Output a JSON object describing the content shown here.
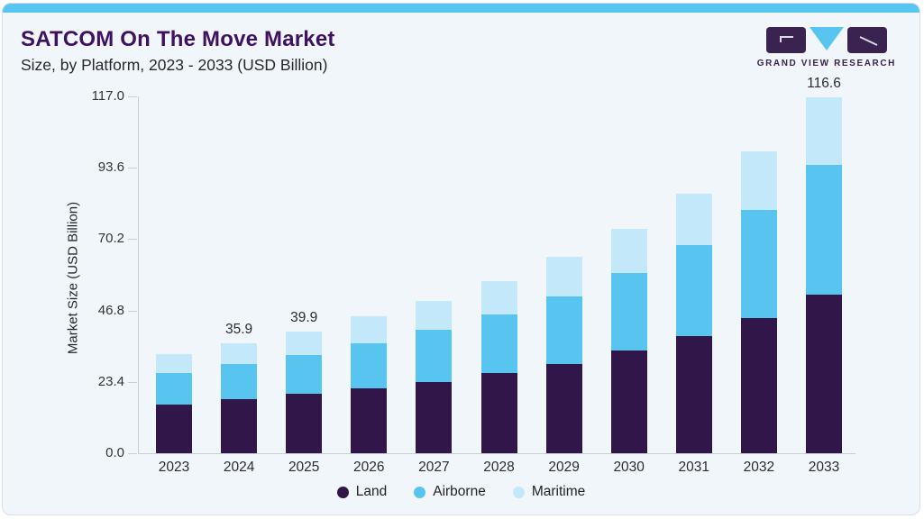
{
  "header": {
    "title": "SATCOM On The Move Market",
    "subtitle": "Size, by Platform, 2023 - 2033 (USD Billion)"
  },
  "logo": {
    "text": "GRAND VIEW RESEARCH"
  },
  "chart_data": {
    "type": "bar",
    "stacked": true,
    "title": "SATCOM On The Move Market",
    "subtitle": "Size, by Platform, 2023 - 2033 (USD Billion)",
    "xlabel": "",
    "ylabel": "Market Size (USD Billion)",
    "ylim": [
      0,
      117
    ],
    "ytick_labels": [
      "0.0",
      "23.4",
      "46.8",
      "70.2",
      "93.6",
      "117.0"
    ],
    "ytick_values": [
      0,
      23.4,
      46.8,
      70.2,
      93.6,
      117
    ],
    "grid": false,
    "legend_position": "bottom",
    "categories": [
      "2023",
      "2024",
      "2025",
      "2026",
      "2027",
      "2028",
      "2029",
      "2030",
      "2031",
      "2032",
      "2033"
    ],
    "series": [
      {
        "name": "Land",
        "color": "#31164a",
        "values": [
          16.0,
          17.6,
          19.4,
          21.2,
          23.4,
          26.2,
          29.3,
          33.6,
          38.4,
          44.3,
          52.0
        ]
      },
      {
        "name": "Airborne",
        "color": "#58c5f0",
        "values": [
          10.2,
          11.6,
          12.9,
          14.7,
          17.1,
          19.3,
          22.2,
          25.4,
          29.9,
          35.6,
          42.5
        ]
      },
      {
        "name": "Maritime",
        "color": "#c2e8f9",
        "values": [
          6.3,
          6.7,
          7.6,
          8.9,
          9.5,
          11.0,
          12.9,
          14.6,
          16.8,
          19.2,
          22.1
        ]
      }
    ],
    "total_labels": {
      "2024": "35.9",
      "2025": "39.9",
      "2033": "116.6"
    }
  },
  "colors": {
    "accent_bar": "#58c5f0",
    "card_background": "#f1f6fa",
    "title_text": "#3e1260",
    "logo_purple": "#3a2351",
    "logo_triangle": "#58c5f0",
    "axis_line": "#c9cfd7"
  }
}
